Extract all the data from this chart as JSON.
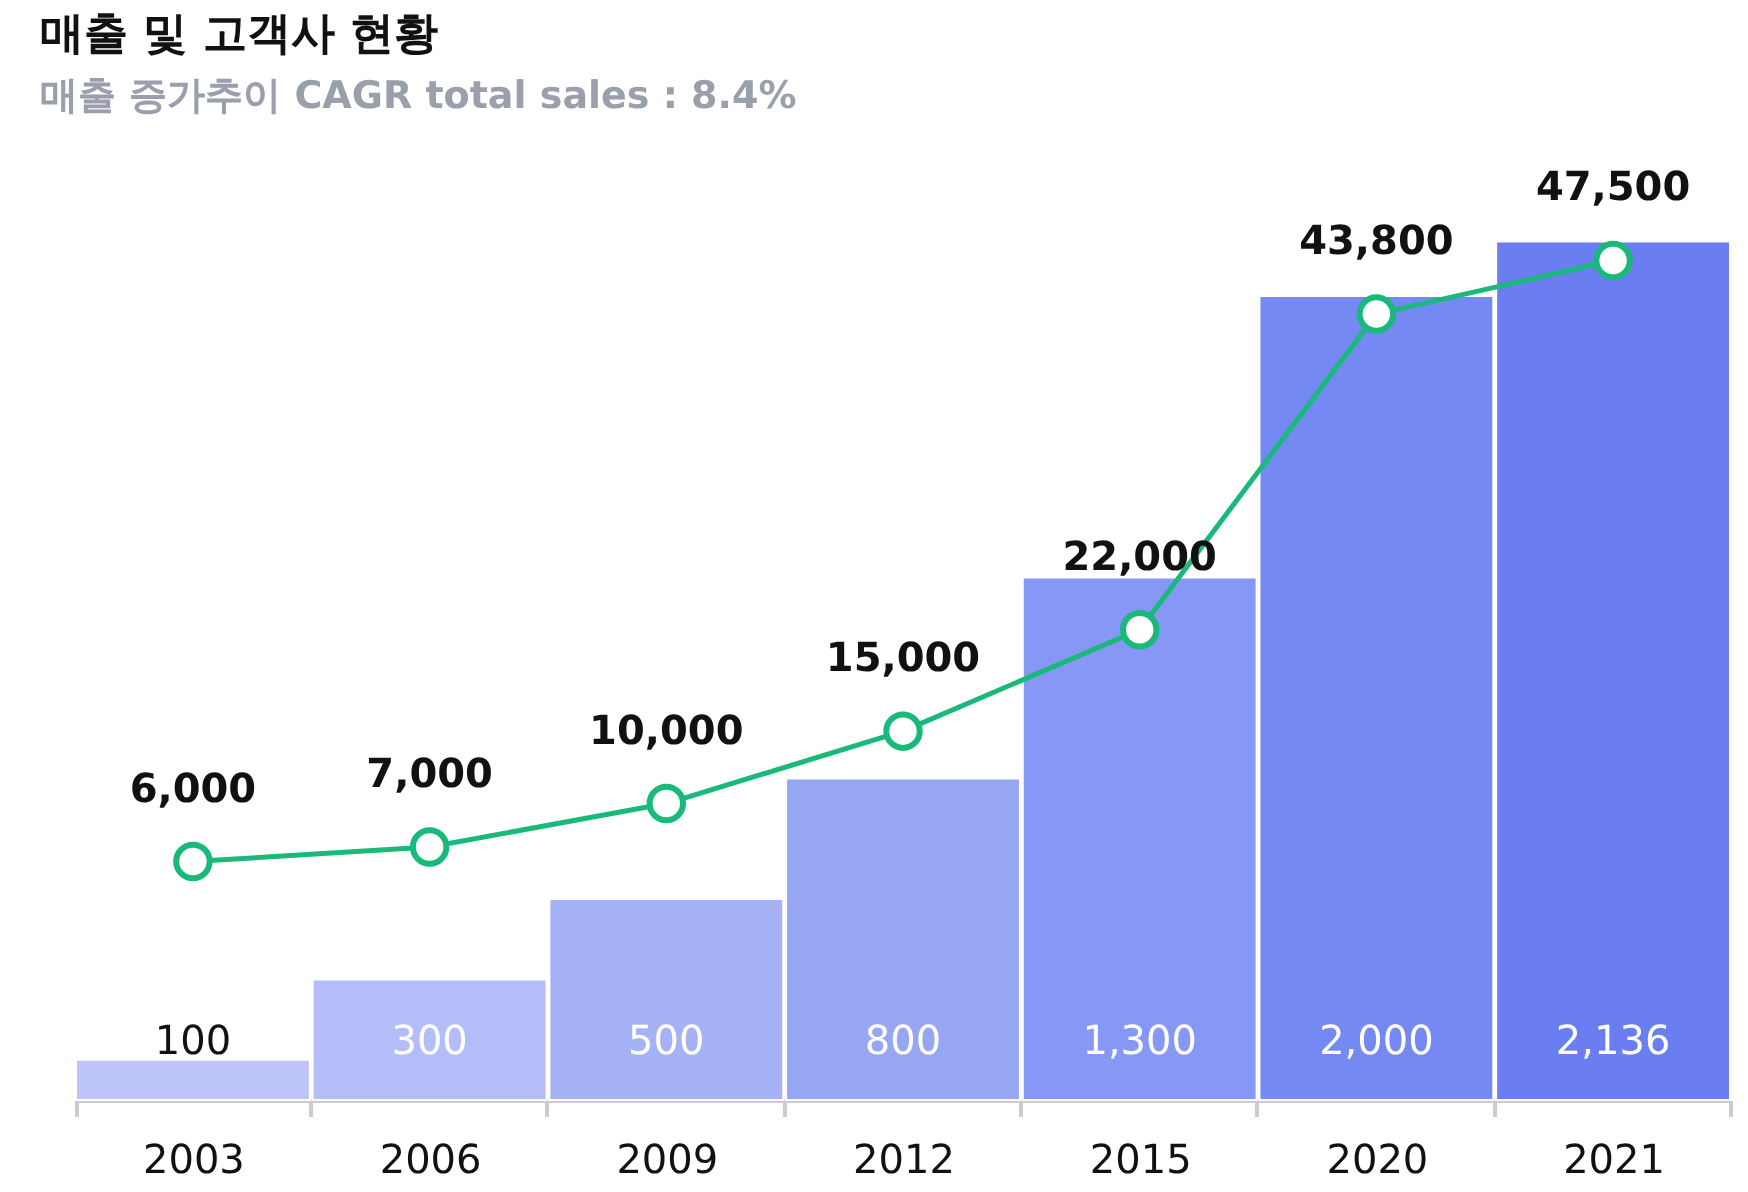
{
  "chart_data": {
    "type": "bar",
    "title": "매출 및 고객사 현황",
    "subtitle": "매출 증가추이  CAGR total sales : 8.4%",
    "categories": [
      "2003",
      "2006",
      "2009",
      "2012",
      "2015",
      "2020",
      "2021"
    ],
    "values": [
      100,
      300,
      500,
      800,
      1300,
      2000,
      2136
    ],
    "value_labels": [
      "100",
      "300",
      "500",
      "800",
      "1,300",
      "2,000",
      "2,136"
    ],
    "colors": [
      "#bcc4f8",
      "#b4bdf8",
      "#a6b2f6",
      "#96a6f3",
      "#8797f5",
      "#7589f2",
      "#6a7ef1"
    ],
    "series": [
      {
        "type": "line",
        "axis": "y2",
        "color": "#19b97a",
        "values": [
          6000,
          7000,
          10000,
          15000,
          22000,
          43800,
          47500
        ],
        "value_labels": [
          "6,000",
          "7,000",
          "10,000",
          "15,000",
          "22,000",
          "43,800",
          "47,500"
        ]
      }
    ],
    "tick_labels": "x",
    "marker": "circle",
    "grid": false
  }
}
